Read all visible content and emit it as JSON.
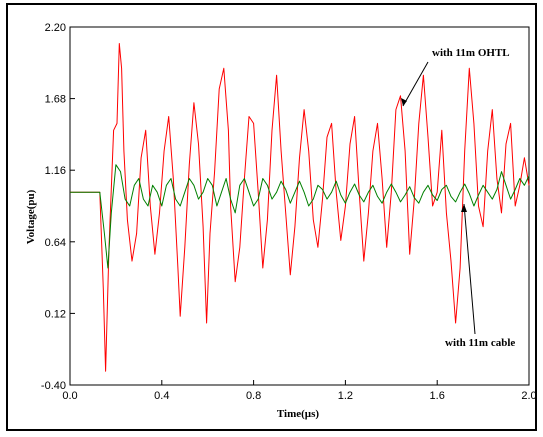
{
  "chart_data": {
    "type": "line",
    "xlabel": "Time(µs)",
    "ylabel": "Voltage(pu)",
    "xlim": [
      0.0,
      2.0
    ],
    "ylim": [
      -0.4,
      2.2
    ],
    "x_ticks": [
      "0.0",
      "0.4",
      "0.8",
      "1.2",
      "1.6",
      "2.0"
    ],
    "y_ticks": [
      "2.20",
      "1.68",
      "1.16",
      "0.64",
      "0.12",
      "-0.40"
    ],
    "x_tick_values": [
      0.0,
      0.4,
      0.8,
      1.2,
      1.6,
      2.0
    ],
    "y_tick_values": [
      2.2,
      1.68,
      1.16,
      0.64,
      0.12,
      -0.4
    ],
    "grid": false,
    "annotations": [
      {
        "text": "with 11m OHTL",
        "points_to": "red trace"
      },
      {
        "text": "with 11m cable",
        "points_to": "green trace"
      }
    ],
    "series": [
      {
        "color": "#ff0000",
        "x": [
          0.0,
          0.13,
          0.145,
          0.155,
          0.17,
          0.19,
          0.205,
          0.215,
          0.225,
          0.235,
          0.25,
          0.27,
          0.29,
          0.31,
          0.33,
          0.35,
          0.37,
          0.39,
          0.41,
          0.43,
          0.45,
          0.47,
          0.48,
          0.5,
          0.52,
          0.54,
          0.56,
          0.58,
          0.595,
          0.61,
          0.63,
          0.65,
          0.67,
          0.69,
          0.7,
          0.72,
          0.74,
          0.76,
          0.78,
          0.8,
          0.82,
          0.84,
          0.86,
          0.88,
          0.9,
          0.92,
          0.94,
          0.96,
          0.98,
          1.0,
          1.02,
          1.04,
          1.06,
          1.08,
          1.1,
          1.12,
          1.14,
          1.16,
          1.18,
          1.2,
          1.22,
          1.24,
          1.26,
          1.28,
          1.3,
          1.32,
          1.34,
          1.36,
          1.38,
          1.4,
          1.42,
          1.44,
          1.46,
          1.48,
          1.5,
          1.52,
          1.54,
          1.56,
          1.58,
          1.6,
          1.62,
          1.64,
          1.66,
          1.68,
          1.7,
          1.72,
          1.74,
          1.76,
          1.78,
          1.8,
          1.82,
          1.84,
          1.86,
          1.88,
          1.9,
          1.92,
          1.94,
          1.96,
          1.98,
          2.0
        ],
        "y": [
          1.0,
          1.0,
          0.3,
          -0.3,
          0.6,
          1.45,
          1.5,
          2.08,
          1.9,
          1.3,
          0.8,
          0.5,
          0.7,
          1.25,
          1.45,
          0.9,
          0.55,
          0.85,
          1.3,
          1.55,
          1.1,
          0.45,
          0.1,
          0.6,
          1.2,
          1.65,
          1.35,
          0.75,
          0.05,
          0.7,
          1.15,
          1.75,
          1.9,
          1.45,
          0.9,
          0.35,
          0.6,
          1.1,
          1.55,
          1.5,
          1.0,
          0.45,
          0.8,
          1.45,
          1.85,
          1.3,
          0.85,
          0.4,
          0.75,
          1.25,
          1.6,
          1.3,
          0.8,
          0.6,
          0.95,
          1.4,
          1.5,
          1.0,
          0.65,
          0.9,
          1.35,
          1.55,
          1.0,
          0.5,
          0.85,
          1.3,
          1.5,
          1.1,
          0.6,
          1.0,
          1.6,
          1.7,
          1.3,
          0.55,
          0.95,
          1.5,
          1.85,
          1.4,
          0.9,
          1.0,
          1.45,
          0.85,
          0.5,
          0.05,
          0.45,
          1.3,
          1.9,
          1.5,
          0.9,
          0.75,
          1.3,
          1.6,
          1.1,
          0.85,
          1.35,
          1.5,
          0.9,
          1.05,
          1.25,
          1.05
        ]
      },
      {
        "color": "#008000",
        "x": [
          0.0,
          0.13,
          0.15,
          0.165,
          0.18,
          0.2,
          0.22,
          0.24,
          0.26,
          0.28,
          0.3,
          0.32,
          0.34,
          0.36,
          0.38,
          0.4,
          0.42,
          0.44,
          0.46,
          0.48,
          0.5,
          0.52,
          0.54,
          0.56,
          0.58,
          0.6,
          0.62,
          0.64,
          0.66,
          0.68,
          0.7,
          0.72,
          0.74,
          0.76,
          0.78,
          0.8,
          0.82,
          0.84,
          0.86,
          0.88,
          0.9,
          0.92,
          0.94,
          0.96,
          0.98,
          1.0,
          1.02,
          1.04,
          1.06,
          1.08,
          1.1,
          1.12,
          1.14,
          1.16,
          1.18,
          1.2,
          1.22,
          1.24,
          1.26,
          1.28,
          1.3,
          1.32,
          1.34,
          1.36,
          1.38,
          1.4,
          1.42,
          1.44,
          1.46,
          1.48,
          1.5,
          1.52,
          1.54,
          1.56,
          1.58,
          1.6,
          1.62,
          1.64,
          1.66,
          1.68,
          1.7,
          1.72,
          1.74,
          1.76,
          1.78,
          1.8,
          1.82,
          1.84,
          1.86,
          1.88,
          1.9,
          1.92,
          1.94,
          1.96,
          1.98,
          2.0
        ],
        "y": [
          1.0,
          1.0,
          0.7,
          0.45,
          0.85,
          1.2,
          1.15,
          0.95,
          0.9,
          1.05,
          1.1,
          0.95,
          0.9,
          1.05,
          1.0,
          0.9,
          1.05,
          1.1,
          0.95,
          0.9,
          1.0,
          1.1,
          1.05,
          0.95,
          1.0,
          1.1,
          1.05,
          0.9,
          1.0,
          1.1,
          0.95,
          0.85,
          1.05,
          1.1,
          1.0,
          0.9,
          0.95,
          1.1,
          1.05,
          0.95,
          1.0,
          1.08,
          1.02,
          0.92,
          1.0,
          1.08,
          1.0,
          0.9,
          0.95,
          1.05,
          1.02,
          0.95,
          1.0,
          1.08,
          0.98,
          0.92,
          1.0,
          1.06,
          0.98,
          0.93,
          1.0,
          1.05,
          0.97,
          0.92,
          1.0,
          1.06,
          1.0,
          0.93,
          0.98,
          1.04,
          0.96,
          0.92,
          1.0,
          1.05,
          0.98,
          0.94,
          1.02,
          1.05,
          0.97,
          0.93,
          1.0,
          1.06,
          0.99,
          0.9,
          0.98,
          1.05,
          1.0,
          0.95,
          1.02,
          1.15,
          1.05,
          0.95,
          1.02,
          1.1,
          1.05,
          1.12
        ]
      }
    ]
  }
}
